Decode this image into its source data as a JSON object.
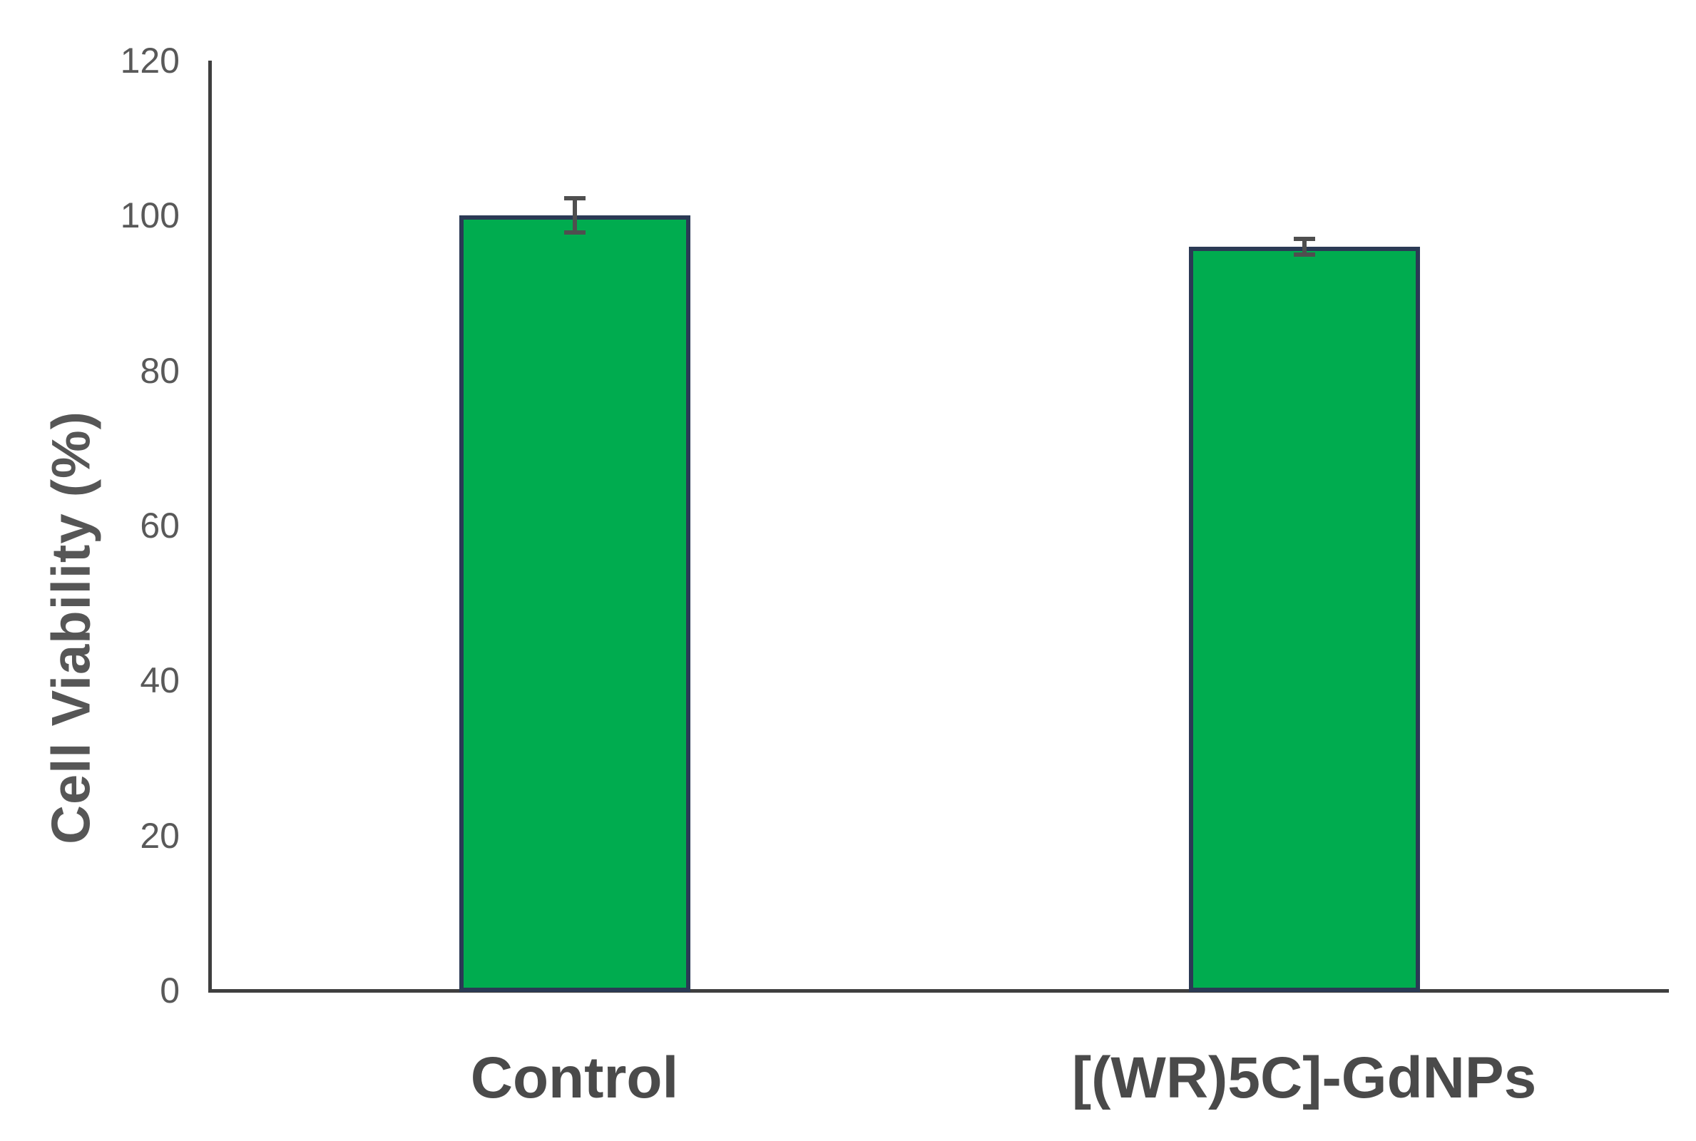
{
  "chart_data": {
    "type": "bar",
    "title": "",
    "xlabel": "",
    "ylabel": "Cell Viability (%)",
    "categories": [
      "Control",
      "[(WR)5C]-GdNPs"
    ],
    "series": [
      {
        "name": "Cell Viability",
        "values": [
          100,
          96
        ],
        "errors": [
          2.2,
          1.0
        ]
      }
    ],
    "ylim": [
      0,
      120
    ],
    "yticks": [
      0,
      20,
      40,
      60,
      80,
      100,
      120
    ],
    "grid": false,
    "legend": false,
    "colors": {
      "bar_fill": "#00AC4F",
      "bar_border": "#2B3A55",
      "error_bar": "#4f4f4f",
      "axis_line": "#3f3f3f",
      "tick_text": "#595959",
      "category_text": "#4a4a4a",
      "axis_title_text": "#565656",
      "background": "#ffffff"
    }
  }
}
